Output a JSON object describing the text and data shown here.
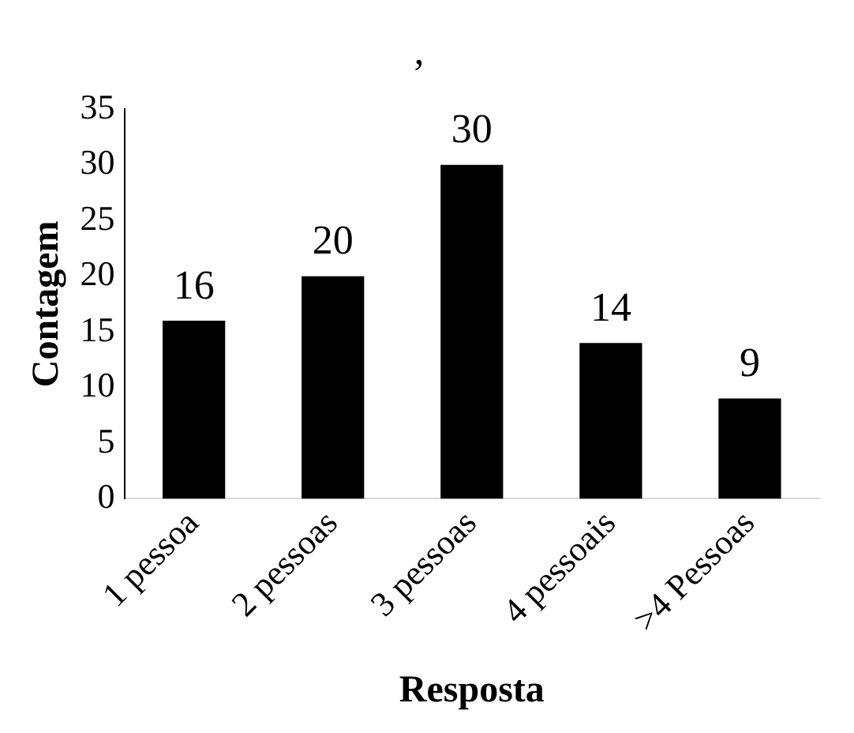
{
  "chart_data": {
    "type": "bar",
    "title": ",",
    "xlabel": "Resposta",
    "ylabel": "Contagem",
    "categories": [
      "1 pessoa",
      "2 pessoas",
      "3 pessoas",
      "4 pessoais",
      ">4 Pessoas"
    ],
    "values": [
      16,
      20,
      30,
      14,
      9
    ],
    "color": "#000000",
    "ylim": [
      0,
      35
    ],
    "yticks": [
      0,
      5,
      10,
      15,
      20,
      25,
      30,
      35
    ],
    "grid": false,
    "legend": false,
    "data_labels": true
  }
}
